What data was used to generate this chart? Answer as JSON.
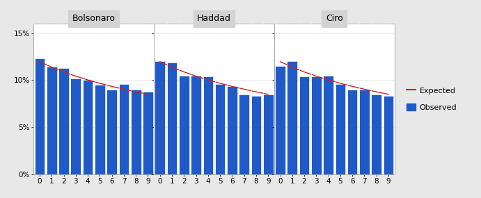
{
  "candidates": [
    "Bolsonaro",
    "Haddad",
    "Ciro"
  ],
  "digits": [
    0,
    1,
    2,
    3,
    4,
    5,
    6,
    7,
    8,
    9
  ],
  "observed": {
    "Bolsonaro": [
      12.3,
      11.4,
      11.3,
      10.2,
      10.0,
      9.5,
      9.0,
      9.6,
      9.0,
      8.8
    ],
    "Haddad": [
      12.0,
      11.9,
      10.5,
      10.5,
      10.4,
      9.6,
      9.4,
      8.5,
      8.3,
      8.5
    ],
    "Ciro": [
      11.5,
      12.0,
      10.4,
      10.4,
      10.5,
      9.6,
      9.0,
      9.0,
      8.5,
      8.3
    ]
  },
  "expected": [
    11.97,
    11.39,
    10.88,
    10.43,
    10.03,
    9.67,
    9.34,
    9.04,
    8.76,
    8.5
  ],
  "bar_color": "#1f5ac8",
  "line_color": "#cc2222",
  "panel_bg": "#ffffff",
  "outer_bg": "#e8e8e8",
  "strip_bg": "#d3d3d3",
  "grid_color": "#ffffff",
  "border_color": "#aaaaaa",
  "ylim": [
    0,
    0.16
  ],
  "yticks": [
    0.0,
    0.05,
    0.1,
    0.15
  ],
  "yticklabels": [
    "0%",
    "5%",
    "10%",
    "15%"
  ],
  "legend_expected": "Expected",
  "legend_observed": "Observed",
  "title_fontsize": 9,
  "tick_fontsize": 7.5
}
